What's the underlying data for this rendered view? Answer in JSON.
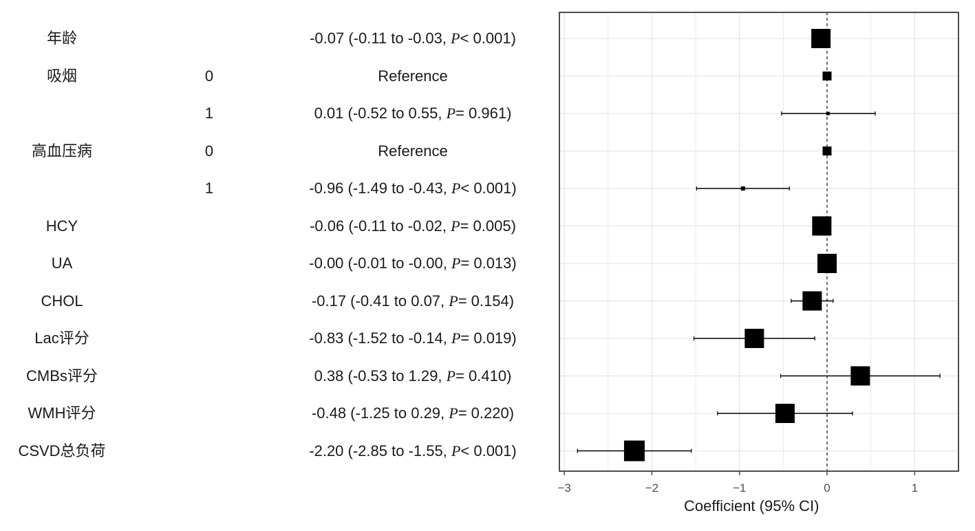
{
  "chart_data": {
    "type": "forest",
    "xlabel": "Coefficient (95% CI)",
    "xlim": [
      -3.1,
      1.5
    ],
    "xticks": [
      -3,
      -2,
      -1,
      0,
      1
    ],
    "reference_line": 0,
    "grid": true,
    "rows": [
      {
        "variable": "年龄",
        "level": "",
        "label": "-0.07 (-0.11 to -0.03, ",
        "p_symbol": "P",
        "p_text": "< 0.001)",
        "estimate": -0.07,
        "lower": -0.11,
        "upper": -0.03,
        "box": 28
      },
      {
        "variable": "吸烟",
        "level": "0",
        "label": "Reference",
        "p_symbol": "",
        "p_text": "",
        "estimate": 0,
        "lower": 0,
        "upper": 0,
        "box": 13
      },
      {
        "variable": "",
        "level": "1",
        "label": "0.01 (-0.52 to 0.55, ",
        "p_symbol": "P",
        "p_text": "= 0.961)",
        "estimate": 0.01,
        "lower": -0.52,
        "upper": 0.55,
        "box": 5
      },
      {
        "variable": "高血压病",
        "level": "0",
        "label": "Reference",
        "p_symbol": "",
        "p_text": "",
        "estimate": 0,
        "lower": 0,
        "upper": 0,
        "box": 13
      },
      {
        "variable": "",
        "level": "1",
        "label": "-0.96 (-1.49 to -0.43, ",
        "p_symbol": "P",
        "p_text": "< 0.001)",
        "estimate": -0.96,
        "lower": -1.49,
        "upper": -0.43,
        "box": 6
      },
      {
        "variable": "HCY",
        "level": "",
        "label": "-0.06 (-0.11 to -0.02, ",
        "p_symbol": "P",
        "p_text": "= 0.005)",
        "estimate": -0.06,
        "lower": -0.11,
        "upper": -0.02,
        "box": 28
      },
      {
        "variable": "UA",
        "level": "",
        "label": "-0.00 (-0.01 to -0.00, ",
        "p_symbol": "P",
        "p_text": "= 0.013)",
        "estimate": -0.0,
        "lower": -0.01,
        "upper": -0.0,
        "box": 28
      },
      {
        "variable": "CHOL",
        "level": "",
        "label": "-0.17 (-0.41 to 0.07, ",
        "p_symbol": "P",
        "p_text": "= 0.154)",
        "estimate": -0.17,
        "lower": -0.41,
        "upper": 0.07,
        "box": 28
      },
      {
        "variable": "Lac评分",
        "level": "",
        "label": "-0.83 (-1.52 to -0.14, ",
        "p_symbol": "P",
        "p_text": "= 0.019)",
        "estimate": -0.83,
        "lower": -1.52,
        "upper": -0.14,
        "box": 28
      },
      {
        "variable": "CMBs评分",
        "level": "",
        "label": "0.38 (-0.53 to 1.29, ",
        "p_symbol": "P",
        "p_text": "= 0.410)",
        "estimate": 0.38,
        "lower": -0.53,
        "upper": 1.29,
        "box": 28
      },
      {
        "variable": "WMH评分",
        "level": "",
        "label": "-0.48 (-1.25 to 0.29, ",
        "p_symbol": "P",
        "p_text": "= 0.220)",
        "estimate": -0.48,
        "lower": -1.25,
        "upper": 0.29,
        "box": 28
      },
      {
        "variable": "CSVD总负荷",
        "level": "",
        "label": "-2.20 (-2.85 to -1.55, ",
        "p_symbol": "P",
        "p_text": "< 0.001)",
        "estimate": -2.2,
        "lower": -2.85,
        "upper": -1.55,
        "box": 30
      }
    ],
    "colors": {
      "mark": "#000000",
      "grid": "#e6e6e6",
      "frame": "#4d4d4d",
      "text": "#1a1a1a"
    }
  }
}
